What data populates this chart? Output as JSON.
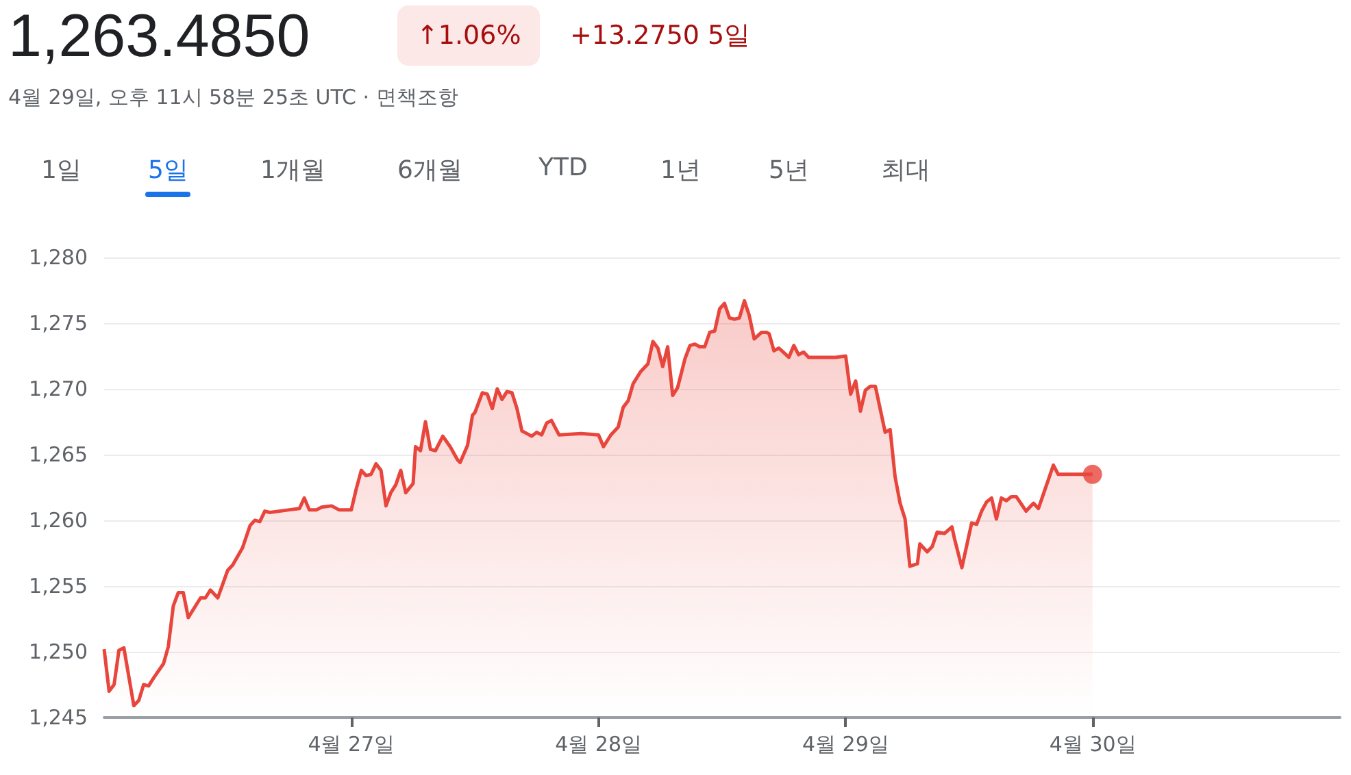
{
  "chart_data": {
    "type": "area",
    "title": "1,263.4850",
    "subtitle": "4월 29일, 오후 11시 58분 25초 UTC · 면책조항",
    "annotations": [
      "↑1.06%",
      "+13.2750 5일",
      "1일",
      "5일",
      "1개월",
      "6개월",
      "YTD",
      "1년",
      "5년",
      "최대"
    ],
    "xlim": [
      "--04-26",
      "--05-01"
    ],
    "xticks": [
      {
        "value": "--04-27",
        "label": "4월 27일"
      },
      {
        "value": "--04-28",
        "label": "4월 28일"
      },
      {
        "value": "--04-29",
        "label": "4월 29일"
      },
      {
        "value": "--04-30",
        "label": "4월 30일"
      }
    ],
    "ylim": [
      1245,
      1280
    ],
    "yticks": [
      {
        "value": 1245,
        "label": "1,245"
      },
      {
        "value": 1250,
        "label": "1,250"
      },
      {
        "value": 1255,
        "label": "1,255"
      },
      {
        "value": 1260,
        "label": "1,260"
      },
      {
        "value": 1265,
        "label": "1,265"
      },
      {
        "value": 1270,
        "label": "1,270"
      },
      {
        "value": 1275,
        "label": "1,275"
      },
      {
        "value": 1280,
        "label": "1,280"
      }
    ],
    "grid": "y",
    "series": [
      {
        "color": "#e8453c",
        "x": [
          "--04-26T00:00",
          "--04-26T00:29",
          "--04-26T00:58",
          "--04-26T01:26",
          "--04-26T01:55",
          "--04-26T02:53",
          "--04-26T03:22",
          "--04-26T03:50",
          "--04-26T04:19",
          "--04-26T04:48",
          "--04-26T05:46",
          "--04-26T06:14",
          "--04-26T06:43",
          "--04-26T07:12",
          "--04-26T07:41",
          "--04-26T08:10",
          "--04-26T08:53",
          "--04-26T09:22",
          "--04-26T09:50",
          "--04-26T10:19",
          "--04-26T11:02",
          "--04-26T12:00",
          "--04-26T12:29",
          "--04-26T13:26",
          "--04-26T14:10",
          "--04-26T14:38",
          "--04-26T15:07",
          "--04-26T15:36",
          "--04-26T16:05",
          "--04-26T18:00",
          "--04-26T18:58",
          "--04-26T19:26",
          "--04-26T19:55",
          "--04-26T20:38",
          "--04-26T21:07",
          "--04-26T22:05",
          "--04-26T22:48",
          "--04-27T00:00",
          "--04-27T00:29",
          "--04-27T00:58",
          "--04-27T01:26",
          "--04-27T01:55",
          "--04-27T02:24",
          "--04-27T02:53",
          "--04-27T03:22",
          "--04-27T03:50",
          "--04-27T04:19",
          "--04-27T04:48",
          "--04-27T05:17",
          "--04-27T06:00",
          "--04-27T06:14",
          "--04-27T06:43",
          "--04-27T07:12",
          "--04-27T07:41",
          "--04-27T08:10",
          "--04-27T08:53",
          "--04-27T09:36",
          "--04-27T10:19",
          "--04-27T10:34",
          "--04-27T11:17",
          "--04-27T11:46",
          "--04-27T12:00",
          "--04-27T12:43",
          "--04-27T13:12",
          "--04-27T13:41",
          "--04-27T14:10",
          "--04-27T14:38",
          "--04-27T15:07",
          "--04-27T15:36",
          "--04-27T16:05",
          "--04-27T16:34",
          "--04-27T17:31",
          "--04-27T18:00",
          "--04-27T18:29",
          "--04-27T18:58",
          "--04-27T19:26",
          "--04-27T20:10",
          "--04-27T22:19",
          "--04-28T00:00",
          "--04-28T00:29",
          "--04-28T01:12",
          "--04-28T01:55",
          "--04-28T02:24",
          "--04-28T02:53",
          "--04-28T03:22",
          "--04-28T04:05",
          "--04-28T04:48",
          "--04-28T05:17",
          "--04-28T05:46",
          "--04-28T06:14",
          "--04-28T06:43",
          "--04-28T07:12",
          "--04-28T07:41",
          "--04-28T08:24",
          "--04-28T08:53",
          "--04-28T09:22",
          "--04-28T09:50",
          "--04-28T10:19",
          "--04-28T10:48",
          "--04-28T11:17",
          "--04-28T11:46",
          "--04-28T12:14",
          "--04-28T12:43",
          "--04-28T13:12",
          "--04-28T13:41",
          "--04-28T14:10",
          "--04-28T14:38",
          "--04-28T15:07",
          "--04-28T15:50",
          "--04-28T16:19",
          "--04-28T16:34",
          "--04-28T17:02",
          "--04-28T17:31",
          "--04-28T18:29",
          "--04-28T18:58",
          "--04-28T19:26",
          "--04-28T19:55",
          "--04-28T20:24",
          "--04-28T23:02",
          "--04-29T00:00",
          "--04-29T00:29",
          "--04-29T00:58",
          "--04-29T01:26",
          "--04-29T01:55",
          "--04-29T02:24",
          "--04-29T02:53",
          "--04-29T03:50",
          "--04-29T04:19",
          "--04-29T04:48",
          "--04-29T05:17",
          "--04-29T05:46",
          "--04-29T06:14",
          "--04-29T06:58",
          "--04-29T07:12",
          "--04-29T07:55",
          "--04-29T08:24",
          "--04-29T08:53",
          "--04-29T09:36",
          "--04-29T10:19",
          "--04-29T10:34",
          "--04-29T11:17",
          "--04-29T12:14",
          "--04-29T12:43",
          "--04-29T13:12",
          "--04-29T13:41",
          "--04-29T14:10",
          "--04-29T14:38",
          "--04-29T15:07",
          "--04-29T15:36",
          "--04-29T16:05",
          "--04-29T16:34",
          "--04-29T17:31",
          "--04-29T18:14",
          "--04-29T18:43",
          "--04-29T20:10",
          "--04-29T20:38",
          "--04-29T23:58"
        ],
        "values": [
          1250.2,
          1247.0,
          1247.5,
          1250.1,
          1250.3,
          1245.9,
          1246.3,
          1247.5,
          1247.4,
          1248.0,
          1249.1,
          1250.4,
          1253.5,
          1254.5,
          1254.5,
          1252.6,
          1253.5,
          1254.1,
          1254.1,
          1254.7,
          1254.1,
          1256.2,
          1256.6,
          1257.9,
          1259.6,
          1260.0,
          1259.9,
          1260.7,
          1260.6,
          1260.8,
          1260.9,
          1261.7,
          1260.8,
          1260.8,
          1261.0,
          1261.1,
          1260.8,
          1260.8,
          1262.4,
          1263.8,
          1263.4,
          1263.5,
          1264.3,
          1263.8,
          1261.1,
          1262.1,
          1262.7,
          1263.8,
          1262.1,
          1262.8,
          1265.6,
          1265.3,
          1267.5,
          1265.4,
          1265.3,
          1266.4,
          1265.6,
          1264.6,
          1264.4,
          1265.7,
          1268.0,
          1268.2,
          1269.7,
          1269.6,
          1268.5,
          1270.0,
          1269.2,
          1269.8,
          1269.7,
          1268.5,
          1266.8,
          1266.4,
          1266.7,
          1266.5,
          1267.4,
          1267.6,
          1266.5,
          1266.6,
          1266.5,
          1265.6,
          1266.5,
          1267.1,
          1268.6,
          1269.1,
          1270.4,
          1271.3,
          1271.9,
          1273.6,
          1273.1,
          1271.7,
          1273.2,
          1269.5,
          1270.1,
          1272.3,
          1273.3,
          1273.4,
          1273.2,
          1273.2,
          1274.3,
          1274.4,
          1276.1,
          1276.5,
          1275.4,
          1275.3,
          1275.4,
          1276.7,
          1275.6,
          1273.8,
          1274.3,
          1274.3,
          1274.2,
          1272.9,
          1273.1,
          1272.4,
          1273.3,
          1272.6,
          1272.8,
          1272.4,
          1272.4,
          1272.5,
          1269.6,
          1270.6,
          1268.3,
          1269.9,
          1270.2,
          1270.2,
          1266.7,
          1266.9,
          1263.3,
          1261.3,
          1260.1,
          1256.5,
          1256.7,
          1258.2,
          1257.6,
          1258.0,
          1259.1,
          1259.0,
          1259.5,
          1258.6,
          1256.4,
          1259.8,
          1259.7,
          1260.7,
          1261.4,
          1261.7,
          1260.1,
          1261.7,
          1261.5,
          1261.8,
          1261.8,
          1260.7,
          1261.3,
          1260.9,
          1264.2,
          1263.5,
          1263.5
        ]
      },
      {
        "type": "scatter",
        "color": "#e8453c",
        "marker": "circle",
        "x": [
          "--04-29T23:58"
        ],
        "values": [
          1263.5
        ]
      }
    ]
  }
}
